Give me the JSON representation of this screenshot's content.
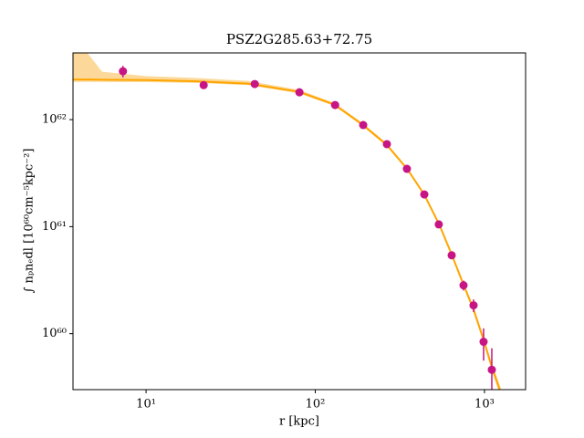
{
  "chart_data": {
    "type": "scatter",
    "title": "PSZ2G285.63+72.75",
    "x_label": "r [kpc]",
    "y_label": "∫ nₚnₑdl [10⁶⁰cm⁻⁵kpc⁻²]",
    "xscale": "log",
    "yscale": "log",
    "xlim": [
      3.7,
      1750
    ],
    "ylim": [
      3e+59,
      4.2e+62
    ],
    "xticks": [
      {
        "value": 10,
        "label": "10¹"
      },
      {
        "value": 100,
        "label": "10²"
      },
      {
        "value": 1000,
        "label": "10³"
      }
    ],
    "yticks": [
      {
        "value": 1e+60,
        "label": "10⁶⁰"
      },
      {
        "value": 1e+61,
        "label": "10⁶¹"
      },
      {
        "value": 1e+62,
        "label": "10⁶²"
      }
    ],
    "series": [
      {
        "type": "line",
        "color": "#ffa500",
        "band_color": "#fcd99a",
        "x": [
          3.7,
          4.5,
          5.5,
          10,
          20,
          40,
          80,
          130,
          190,
          265,
          350,
          440,
          540,
          640,
          750,
          860,
          990,
          1100,
          1250
        ],
        "values": [
          2.37e+62,
          2.37e+62,
          2.36e+62,
          2.34e+62,
          2.28e+62,
          2.17e+62,
          1.82e+62,
          1.38e+62,
          9e+61,
          5.8e+61,
          3.45e+61,
          2e+61,
          1.05e+61,
          5.5e+60,
          2.9e+60,
          1.7e+60,
          8.7e+59,
          5e+59,
          2.8e+59
        ],
        "band_upper": [
          4.2e+62,
          4.2e+62,
          2.8e+62,
          2.55e+62,
          2.45e+62,
          2.3e+62,
          1.9e+62,
          1.43e+62,
          9.3e+61,
          6e+61,
          3.55e+61,
          2.05e+61,
          1.08e+61,
          5.7e+60,
          3.05e+60,
          1.8e+60,
          9.3e+59,
          5.4e+59,
          3.1e+59
        ],
        "band_lower": [
          2.25e+62,
          2.25e+62,
          2.25e+62,
          2.24e+62,
          2.2e+62,
          2.1e+62,
          1.76e+62,
          1.34e+62,
          8.7e+61,
          5.6e+61,
          3.35e+61,
          1.95e+61,
          1.02e+61,
          5.3e+60,
          2.75e+60,
          1.6e+60,
          8.1e+59,
          4.6e+59,
          2.5e+59
        ]
      },
      {
        "type": "scatter",
        "color": "#c71585",
        "x": [
          7.3,
          21.9,
          43.9,
          80.6,
          131,
          192,
          265,
          348,
          441,
          537,
          640,
          752,
          862,
          988,
          1105
        ],
        "values": [
          2.83e+62,
          2.1e+62,
          2.15e+62,
          1.8e+62,
          1.37e+62,
          8.9e+61,
          5.9e+61,
          3.47e+61,
          2e+61,
          1.05e+61,
          5.4e+60,
          2.83e+60,
          1.84e+60,
          8.4e+59,
          4.6e+59
        ],
        "errors": [
          3.5e+61,
          1.2e+61,
          5e+60,
          4e+60,
          3e+60,
          2e+60,
          1.5e+60,
          1e+60,
          7e+59,
          4e+59,
          3e+59,
          3e+59,
          2.5e+59,
          2.8e+59,
          2.7e+59
        ]
      }
    ]
  }
}
